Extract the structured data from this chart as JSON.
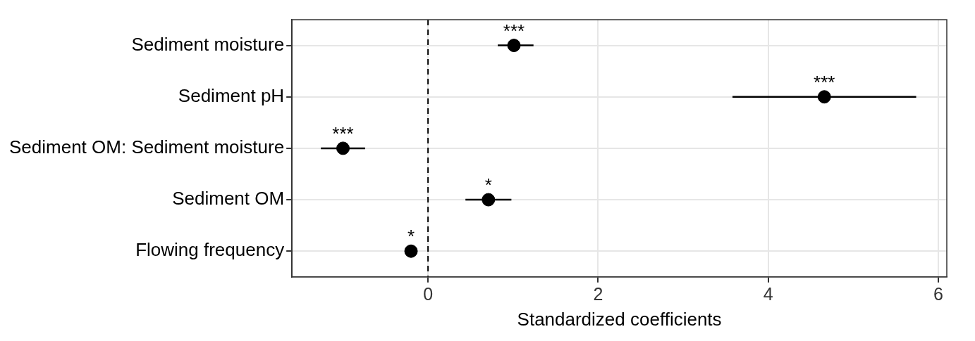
{
  "chart_data": {
    "type": "scatter",
    "orientation": "horizontal",
    "xlabel": "Standardized coefficients",
    "categories": [
      "Sediment moisture",
      "Sediment pH",
      "Sediment OM: Sediment moisture",
      "Sediment OM",
      "Flowing frequency"
    ],
    "values": [
      1.01,
      4.66,
      -1.0,
      0.71,
      -0.2
    ],
    "errors": [
      [
        0.82,
        1.24
      ],
      [
        3.58,
        5.74
      ],
      [
        -1.26,
        -0.74
      ],
      [
        0.44,
        0.98
      ],
      null
    ],
    "color": "#000000",
    "marker": "circle",
    "xlim": [
      -1.6,
      6.1
    ],
    "xticks": [
      0,
      2,
      4,
      6
    ],
    "grid": true,
    "legend": false,
    "ref_lines": [
      {
        "axis": "x",
        "value": 0,
        "line_style": "dashed",
        "color": "#000000"
      }
    ],
    "annotations": [
      {
        "text": "***",
        "x": 1.01,
        "y": "Sediment moisture"
      },
      {
        "text": "***",
        "x": 4.66,
        "y": "Sediment pH"
      },
      {
        "text": "***",
        "x": -1.0,
        "y": "Sediment OM: Sediment moisture"
      },
      {
        "text": "*",
        "x": 0.71,
        "y": "Sediment OM"
      },
      {
        "text": "*",
        "x": -0.2,
        "y": "Flowing frequency"
      }
    ]
  }
}
